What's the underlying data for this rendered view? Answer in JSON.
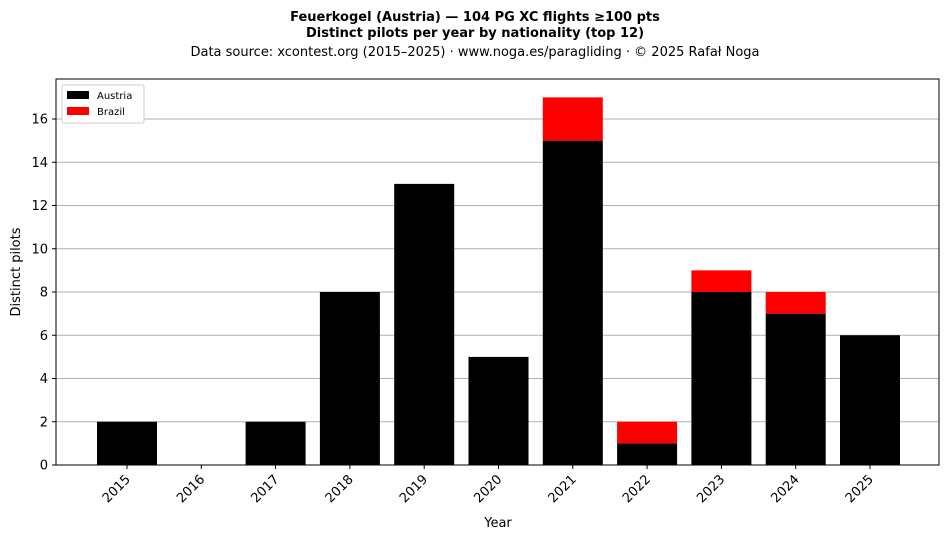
{
  "chart_data": {
    "type": "bar",
    "stacked": true,
    "title": "Feuerkogel (Austria)  —  104 PG XC flights ≥100 pts",
    "subtitle": "Distinct pilots per year by nationality (top 12)",
    "source": "Data source: xcontest.org (2015–2025)  ·  www.noga.es/paragliding  ·  © 2025 Rafał Noga",
    "xlabel": "Year",
    "ylabel": "Distinct pilots",
    "ylim": [
      0,
      17.85
    ],
    "yticks": [
      0,
      2,
      4,
      6,
      8,
      10,
      12,
      14,
      16
    ],
    "grid": "y",
    "legend_position": "top-left",
    "categories": [
      "2015",
      "2016",
      "2017",
      "2018",
      "2019",
      "2020",
      "2021",
      "2022",
      "2023",
      "2024",
      "2025"
    ],
    "series": [
      {
        "name": "Austria",
        "color": "#000000",
        "values": [
          2,
          0,
          2,
          8,
          13,
          5,
          15,
          1,
          8,
          7,
          6
        ]
      },
      {
        "name": "Brazil",
        "color": "#ff0000",
        "values": [
          0,
          0,
          0,
          0,
          0,
          0,
          2,
          1,
          1,
          1,
          0
        ]
      }
    ]
  }
}
